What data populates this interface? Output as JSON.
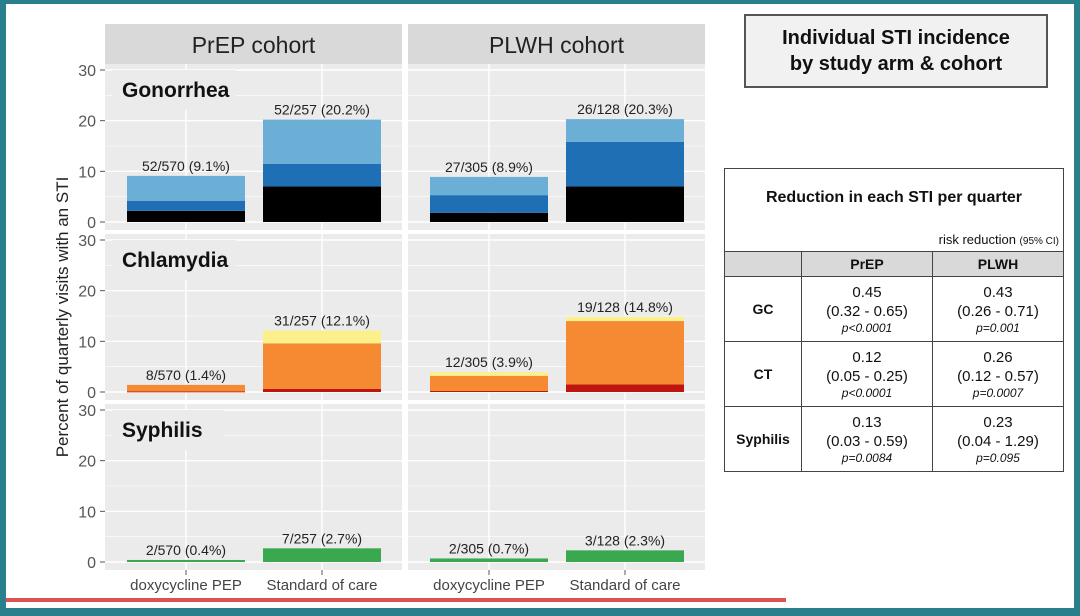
{
  "figure_title": {
    "line1": "Individual STI incidence",
    "line2": "by study arm & cohort"
  },
  "colors": {
    "panel_bg": "#ebebeb",
    "grid": "#ffffff",
    "strip_bg": "#d9d9d9",
    "gc": [
      "#000000",
      "#1f6fb4",
      "#6baed6"
    ],
    "ct": [
      "#c0150e",
      "#f58a33",
      "#fbf08a"
    ],
    "syphilis": [
      "#3aa84f"
    ]
  },
  "chart_data": {
    "type": "bar",
    "stacked": true,
    "facets_columns": [
      "PrEP cohort",
      "PLWH cohort"
    ],
    "facets_rows": [
      "Gonorrhea",
      "Chlamydia",
      "Syphilis"
    ],
    "categories": [
      "doxycycline PEP",
      "Standard of care"
    ],
    "ylabel": "Percent of quarterly visits with an STI",
    "xlabel": "",
    "ylim": [
      0,
      30
    ],
    "yticks": [
      0,
      10,
      20,
      30
    ],
    "grid": true,
    "panels": [
      {
        "row": 0,
        "col": 0,
        "bars": [
          {
            "label": "52/570 (9.1%)",
            "total": 9.1,
            "segments": [
              2.2,
              2.0,
              4.9
            ]
          },
          {
            "label": "52/257 (20.2%)",
            "total": 20.2,
            "segments": [
              7.0,
              4.5,
              8.7
            ]
          }
        ]
      },
      {
        "row": 0,
        "col": 1,
        "bars": [
          {
            "label": "27/305 (8.9%)",
            "total": 8.9,
            "segments": [
              1.8,
              3.5,
              3.6
            ]
          },
          {
            "label": "26/128 (20.3%)",
            "total": 20.3,
            "segments": [
              7.0,
              8.8,
              4.5
            ]
          }
        ]
      },
      {
        "row": 1,
        "col": 0,
        "bars": [
          {
            "label": "8/570 (1.4%)",
            "total": 1.4,
            "segments": [
              0.1,
              1.3,
              0.0
            ]
          },
          {
            "label": "31/257 (12.1%)",
            "total": 12.1,
            "segments": [
              0.6,
              9.0,
              2.5
            ]
          }
        ]
      },
      {
        "row": 1,
        "col": 1,
        "bars": [
          {
            "label": "12/305 (3.9%)",
            "total": 3.9,
            "segments": [
              0.2,
              3.0,
              0.7
            ]
          },
          {
            "label": "19/128 (14.8%)",
            "total": 14.8,
            "segments": [
              1.5,
              12.5,
              0.8
            ]
          }
        ]
      },
      {
        "row": 2,
        "col": 0,
        "bars": [
          {
            "label": "2/570 (0.4%)",
            "total": 0.4,
            "segments": [
              0.4
            ]
          },
          {
            "label": "7/257 (2.7%)",
            "total": 2.7,
            "segments": [
              2.7
            ]
          }
        ]
      },
      {
        "row": 2,
        "col": 1,
        "bars": [
          {
            "label": "2/305 (0.7%)",
            "total": 0.7,
            "segments": [
              0.7
            ]
          },
          {
            "label": "3/128 (2.3%)",
            "total": 2.3,
            "segments": [
              2.3
            ]
          }
        ]
      }
    ]
  },
  "table": {
    "title": "Reduction in each STI per quarter",
    "subtitle": "risk reduction",
    "subtitle_ci": "(95% CI)",
    "col_prep": "PrEP",
    "col_plwh": "PLWH",
    "rows": [
      {
        "label": "GC",
        "prep": {
          "value": "0.45",
          "ci": "(0.32 - 0.65)",
          "p": "p<0.0001"
        },
        "plwh": {
          "value": "0.43",
          "ci": "(0.26 - 0.71)",
          "p": "p=0.001"
        }
      },
      {
        "label": "CT",
        "prep": {
          "value": "0.12",
          "ci": "(0.05 - 0.25)",
          "p": "p<0.0001"
        },
        "plwh": {
          "value": "0.26",
          "ci": "(0.12 - 0.57)",
          "p": "p=0.0007"
        }
      },
      {
        "label": "Syphilis",
        "prep": {
          "value": "0.13",
          "ci": "(0.03 - 0.59)",
          "p": "p=0.0084"
        },
        "plwh": {
          "value": "0.23",
          "ci": "(0.04 - 1.29)",
          "p": "p=0.095"
        }
      }
    ]
  }
}
